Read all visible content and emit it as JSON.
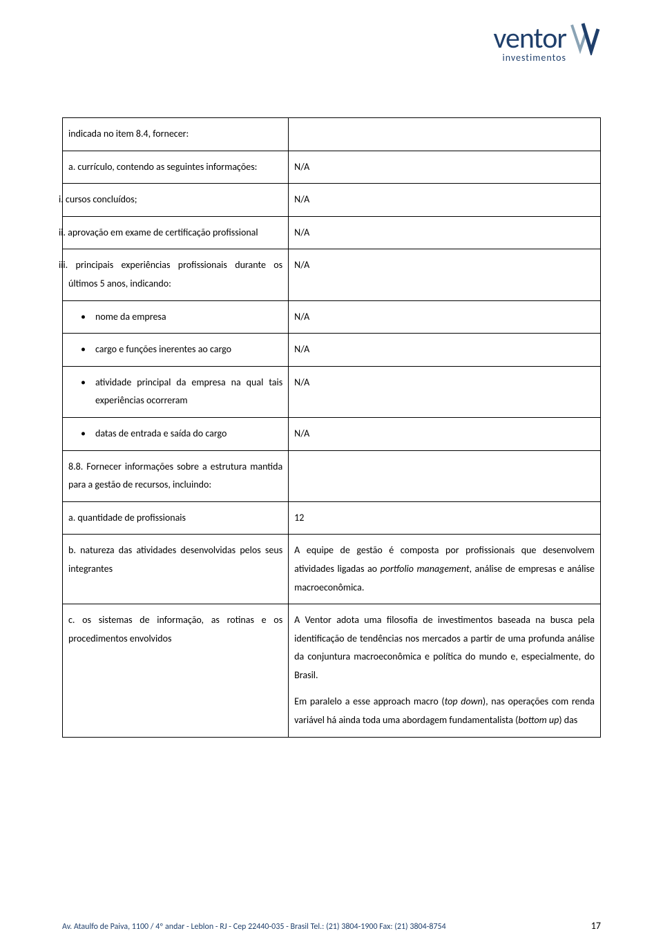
{
  "brand": {
    "name": "ventor",
    "sub": "investimentos",
    "color": "#1f3f6b"
  },
  "rows": [
    {
      "left_html": "indicada no item 8.4, fornecer:",
      "right": "",
      "left_class": ""
    },
    {
      "left_html": "a. currículo, contendo as seguintes informações:",
      "right": "N/A",
      "left_class": "justify"
    },
    {
      "left_html": "i. cursos concluídos;",
      "right": "N/A",
      "left_class": "indent-roman"
    },
    {
      "left_html": "ii. aprovação em exame de certificação profissional",
      "right": "N/A",
      "left_class": "indent-roman justify"
    },
    {
      "left_html": "iii. principais experiências profissionais durante os últimos 5 anos, indicando:",
      "right": "N/A",
      "left_class": "indent-roman justify"
    },
    {
      "left_html": "nome da empresa",
      "right": "N/A",
      "bullet": true
    },
    {
      "left_html": "cargo e funções inerentes ao cargo",
      "right": "N/A",
      "bullet": true
    },
    {
      "left_html": "atividade principal da empresa na qual tais experiências ocorreram",
      "right": "N/A",
      "bullet": true,
      "left_class": "justify"
    },
    {
      "left_html": "datas de entrada e saída do cargo",
      "right": "N/A",
      "bullet": true
    },
    {
      "left_html": "8.8. Fornecer informações sobre a estrutura mantida para a gestão de recursos, incluindo:",
      "right": "",
      "left_class": "justify"
    },
    {
      "left_html": "a. quantidade de profissionais",
      "right": "12"
    },
    {
      "left_html": "b. natureza das atividades desenvolvidas pelos seus integrantes",
      "right_html": "A equipe de gestão é composta por profissionais que desenvolvem atividades ligadas ao <em>portfolio management</em>, análise de empresas e análise macroeconômica.",
      "left_class": "justify",
      "right_class": "justify"
    },
    {
      "left_html": "c. os sistemas de informação, as rotinas e os procedimentos envolvidos",
      "right_paras": [
        "A Ventor adota uma filosofia de investimentos baseada na busca pela identificação de tendências nos mercados a partir de uma profunda análise da conjuntura macroeconômica e política do mundo e, especialmente, do Brasil.",
        "Em paralelo a esse approach macro (<em>top down</em>), nas operações com renda variável há ainda toda uma abordagem fundamentalista (<em>bottom up</em>) das"
      ],
      "left_class": "justify",
      "right_class": "justify"
    }
  ],
  "footer": {
    "address": "Av. Ataulfo de Paiva, 1100 / 4º andar - Leblon - RJ - Cep 22440-035 - Brasil  Tel.: (21) 3804-1900  Fax: (21) 3804-8754",
    "page": "17"
  }
}
